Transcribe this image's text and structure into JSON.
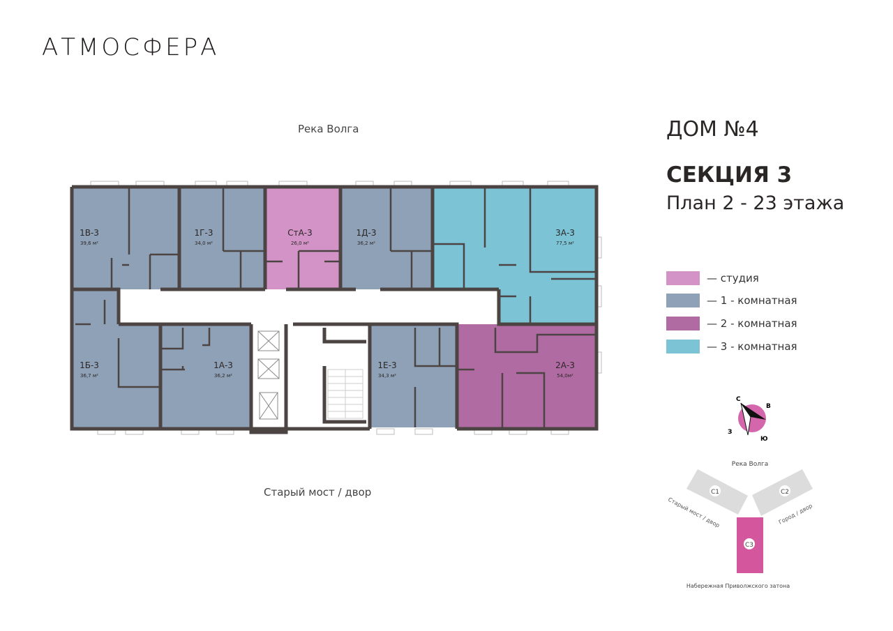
{
  "logo": "АТМОСФЕРА",
  "plan": {
    "top_side": "Река Волга",
    "bottom_side": "Старый мост / двор",
    "apartments": [
      {
        "id": "1В-3",
        "area": "39,6 м²",
        "type": "1"
      },
      {
        "id": "1Г-3",
        "area": "34,0 м²",
        "type": "1"
      },
      {
        "id": "СтА-3",
        "area": "26,0 м²",
        "type": "studio"
      },
      {
        "id": "1Д-3",
        "area": "36,2 м²",
        "type": "1"
      },
      {
        "id": "3А-3",
        "area": "77,5 м²",
        "type": "3"
      },
      {
        "id": "1Б-3",
        "area": "36,7 м²",
        "type": "1"
      },
      {
        "id": "1А-3",
        "area": "36,2 м²",
        "type": "1"
      },
      {
        "id": "1Е-3",
        "area": "34,3 м²",
        "type": "1"
      },
      {
        "id": "2А-3",
        "area": "54,0м²",
        "type": "2"
      }
    ]
  },
  "header": {
    "house": "ДОМ №4",
    "section": "СЕКЦИЯ 3",
    "floors": "План 2 - 23 этажа"
  },
  "legend": [
    {
      "label": "— студия",
      "color": "#d393c6"
    },
    {
      "label": "— 1 - комнатная",
      "color": "#8fa1b6"
    },
    {
      "label": "— 2 - комнатная",
      "color": "#b06ba3"
    },
    {
      "label": "— 3 - комнатная",
      "color": "#7cc3d6"
    }
  ],
  "colors": {
    "wall": "#4b4443",
    "accent": "#d4579e",
    "site_gray": "#dcdcdc"
  },
  "compass": {
    "n": "С",
    "e": "В",
    "s": "Ю",
    "w": "З"
  },
  "site": {
    "top": "Река Волга",
    "c1": "С1",
    "c2": "С2",
    "c3": "С3",
    "left": "Старый мост / двор",
    "right": "Город / двор",
    "bottom": "Набережная Приволжского затона"
  }
}
